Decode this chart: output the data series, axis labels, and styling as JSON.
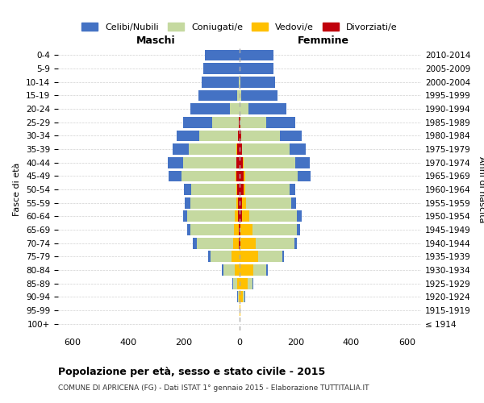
{
  "age_groups": [
    "100+",
    "95-99",
    "90-94",
    "85-89",
    "80-84",
    "75-79",
    "70-74",
    "65-69",
    "60-64",
    "55-59",
    "50-54",
    "45-49",
    "40-44",
    "35-39",
    "30-34",
    "25-29",
    "20-24",
    "15-19",
    "10-14",
    "5-9",
    "0-4"
  ],
  "birth_years": [
    "≤ 1914",
    "1915-1919",
    "1920-1924",
    "1925-1929",
    "1930-1934",
    "1935-1939",
    "1940-1944",
    "1945-1949",
    "1950-1954",
    "1955-1959",
    "1960-1964",
    "1965-1969",
    "1970-1974",
    "1975-1979",
    "1980-1984",
    "1985-1989",
    "1990-1994",
    "1995-1999",
    "2000-2004",
    "2005-2009",
    "2010-2014"
  ],
  "males": {
    "celibi": [
      0,
      0,
      2,
      3,
      5,
      8,
      15,
      12,
      15,
      20,
      25,
      45,
      55,
      60,
      80,
      105,
      140,
      140,
      135,
      130,
      125
    ],
    "coniugati": [
      0,
      1,
      5,
      15,
      40,
      75,
      130,
      155,
      170,
      165,
      160,
      195,
      190,
      170,
      140,
      95,
      35,
      8,
      2,
      0,
      0
    ],
    "vedovi": [
      0,
      0,
      2,
      8,
      18,
      30,
      22,
      18,
      12,
      6,
      3,
      2,
      1,
      1,
      0,
      0,
      0,
      0,
      0,
      0,
      0
    ],
    "divorziati": [
      0,
      0,
      0,
      0,
      0,
      0,
      2,
      3,
      6,
      6,
      10,
      12,
      12,
      10,
      5,
      3,
      1,
      0,
      0,
      0,
      0
    ]
  },
  "females": {
    "nubili": [
      0,
      0,
      1,
      2,
      4,
      6,
      10,
      12,
      15,
      18,
      22,
      45,
      52,
      58,
      78,
      105,
      135,
      130,
      125,
      122,
      120
    ],
    "coniugate": [
      0,
      1,
      6,
      18,
      48,
      88,
      138,
      158,
      172,
      162,
      158,
      190,
      185,
      168,
      138,
      92,
      32,
      7,
      2,
      0,
      0
    ],
    "vedove": [
      0,
      2,
      12,
      28,
      48,
      65,
      55,
      42,
      25,
      14,
      6,
      5,
      2,
      1,
      1,
      0,
      0,
      0,
      0,
      0,
      0
    ],
    "divorziate": [
      0,
      0,
      0,
      0,
      0,
      1,
      2,
      4,
      9,
      9,
      14,
      14,
      12,
      9,
      5,
      3,
      1,
      0,
      0,
      0,
      0
    ]
  },
  "colors": {
    "celibi": "#4472C4",
    "coniugati": "#c5d9a0",
    "vedovi": "#ffc000",
    "divorziati": "#c0000b"
  },
  "xlim": 650,
  "xticks": [
    -600,
    -400,
    -200,
    0,
    200,
    400,
    600
  ],
  "title": "Popolazione per età, sesso e stato civile - 2015",
  "subtitle": "COMUNE DI APRICENA (FG) - Dati ISTAT 1° gennaio 2015 - Elaborazione TUTTITALIA.IT",
  "xlabel_left": "Maschi",
  "xlabel_right": "Femmine",
  "ylabel": "Fasce di età",
  "ylabel_right": "Anni di nascita",
  "legend": [
    "Celibi/Nubili",
    "Coniugati/e",
    "Vedovi/e",
    "Divorziati/e"
  ]
}
